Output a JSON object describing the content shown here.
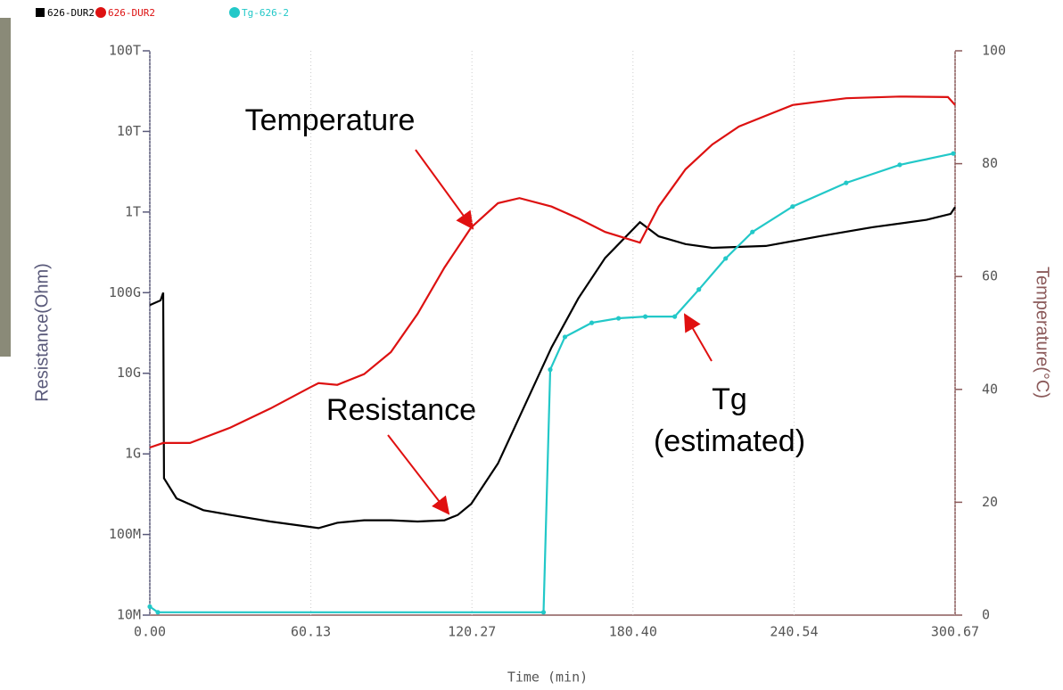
{
  "chart_data": {
    "type": "line",
    "x_label": "Time (min)",
    "y_label": "Resistance(Ohm)",
    "y2_label": "Temperature(°C)",
    "xlim": [
      0,
      300.67
    ],
    "xticks": [
      {
        "value": 0,
        "label": "0.00"
      },
      60.13,
      120.27,
      {
        "value": 180.4,
        "label": "180.40"
      },
      240.54,
      300.67
    ],
    "ylim": [
      10000000.0,
      100000000000000.0
    ],
    "y_scale": "log",
    "yticks": [
      {
        "value": 10000000.0,
        "label": "10M"
      },
      {
        "value": 100000000.0,
        "label": "100M"
      },
      {
        "value": 1000000000.0,
        "label": "1G"
      },
      {
        "value": 10000000000.0,
        "label": "10G"
      },
      {
        "value": 100000000000.0,
        "label": "100G"
      },
      {
        "value": 1000000000000.0,
        "label": "1T"
      },
      {
        "value": 10000000000000.0,
        "label": "10T"
      },
      {
        "value": 100000000000000.0,
        "label": "100T"
      }
    ],
    "y2lim": [
      0,
      100
    ],
    "y2ticks": [
      0,
      20,
      40,
      60,
      80,
      100
    ],
    "grid": true,
    "series": [
      {
        "name": "626-DUR2",
        "color": "#000000",
        "marker": "square",
        "axis": "y",
        "x": [
          0,
          4,
          5,
          5.3,
          10,
          20,
          30,
          45,
          63,
          70,
          80,
          90,
          100,
          110,
          115,
          120,
          130,
          140,
          150,
          160,
          170,
          183,
          190,
          200,
          210,
          230,
          250,
          270,
          290,
          299,
          300.67
        ],
        "values": [
          70000000000.0,
          80000000000.0,
          100000000000.0,
          500000000.0,
          280000000.0,
          200000000.0,
          175000000.0,
          145000000.0,
          120000000.0,
          140000000.0,
          150000000.0,
          150000000.0,
          145000000.0,
          150000000.0,
          175000000.0,
          240000000.0,
          760000000.0,
          4000000000.0,
          21000000000.0,
          85000000000.0,
          270000000000.0,
          750000000000.0,
          500000000000.0,
          400000000000.0,
          360000000000.0,
          380000000000.0,
          500000000000.0,
          650000000000.0,
          800000000000.0,
          950000000000.0,
          1150000000000.0
        ]
      },
      {
        "name": "626-DUR2",
        "color": "#dd1111",
        "marker": "circle",
        "axis": "y2",
        "x": [
          0,
          5,
          15,
          30,
          45,
          60,
          63,
          70,
          80,
          90,
          100,
          110,
          120,
          130,
          138,
          150,
          160,
          170,
          183,
          190,
          200,
          210,
          220,
          240,
          260,
          280,
          298,
          300.67
        ],
        "values": [
          29.7,
          30.5,
          30.5,
          33.2,
          36.6,
          40.4,
          41.1,
          40.8,
          42.7,
          46.6,
          53.4,
          61.6,
          68.7,
          73,
          73.9,
          72.4,
          70.3,
          67.9,
          66,
          72.4,
          79,
          83.4,
          86.6,
          90.4,
          91.6,
          91.9,
          91.8,
          90.4
        ]
      },
      {
        "name": "Tg-626-2",
        "color": "#22c8c8",
        "marker": "circle",
        "axis": "y2",
        "x": [
          0,
          3,
          147,
          149.5,
          155,
          165,
          175,
          185,
          196,
          205,
          215,
          225,
          240,
          260,
          280,
          300
        ],
        "values": [
          1.5,
          0.5,
          0.5,
          43.5,
          49.3,
          51.8,
          52.6,
          52.9,
          52.9,
          57.7,
          63.2,
          67.9,
          72.4,
          76.6,
          79.8,
          81.8
        ]
      }
    ],
    "annotations": [
      "Temperature",
      "Resistance",
      "Tg",
      "(estimated)"
    ]
  }
}
